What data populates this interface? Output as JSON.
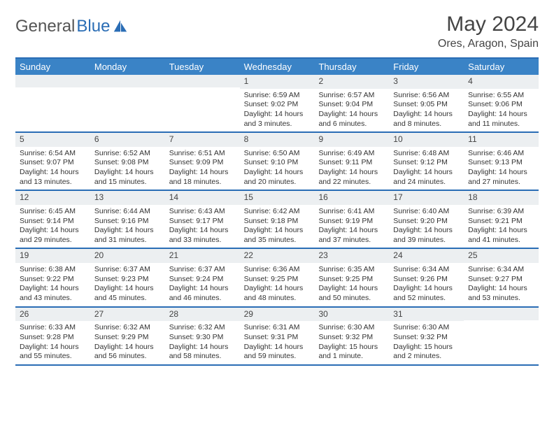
{
  "brand": {
    "part1": "General",
    "part2": "Blue"
  },
  "title": "May 2024",
  "location": "Ores, Aragon, Spain",
  "day_headers": [
    "Sunday",
    "Monday",
    "Tuesday",
    "Wednesday",
    "Thursday",
    "Friday",
    "Saturday"
  ],
  "colors": {
    "header_bg": "#3a83c6",
    "header_text": "#ffffff",
    "accent_border": "#2a6db5",
    "daynum_bg": "#eceff1",
    "text": "#333333",
    "logo_blue": "#2a6db5",
    "logo_gray": "#555555"
  },
  "weeks": [
    [
      {
        "empty": true
      },
      {
        "empty": true
      },
      {
        "empty": true
      },
      {
        "num": "1",
        "sunrise": "Sunrise: 6:59 AM",
        "sunset": "Sunset: 9:02 PM",
        "daylight": "Daylight: 14 hours and 3 minutes."
      },
      {
        "num": "2",
        "sunrise": "Sunrise: 6:57 AM",
        "sunset": "Sunset: 9:04 PM",
        "daylight": "Daylight: 14 hours and 6 minutes."
      },
      {
        "num": "3",
        "sunrise": "Sunrise: 6:56 AM",
        "sunset": "Sunset: 9:05 PM",
        "daylight": "Daylight: 14 hours and 8 minutes."
      },
      {
        "num": "4",
        "sunrise": "Sunrise: 6:55 AM",
        "sunset": "Sunset: 9:06 PM",
        "daylight": "Daylight: 14 hours and 11 minutes."
      }
    ],
    [
      {
        "num": "5",
        "sunrise": "Sunrise: 6:54 AM",
        "sunset": "Sunset: 9:07 PM",
        "daylight": "Daylight: 14 hours and 13 minutes."
      },
      {
        "num": "6",
        "sunrise": "Sunrise: 6:52 AM",
        "sunset": "Sunset: 9:08 PM",
        "daylight": "Daylight: 14 hours and 15 minutes."
      },
      {
        "num": "7",
        "sunrise": "Sunrise: 6:51 AM",
        "sunset": "Sunset: 9:09 PM",
        "daylight": "Daylight: 14 hours and 18 minutes."
      },
      {
        "num": "8",
        "sunrise": "Sunrise: 6:50 AM",
        "sunset": "Sunset: 9:10 PM",
        "daylight": "Daylight: 14 hours and 20 minutes."
      },
      {
        "num": "9",
        "sunrise": "Sunrise: 6:49 AM",
        "sunset": "Sunset: 9:11 PM",
        "daylight": "Daylight: 14 hours and 22 minutes."
      },
      {
        "num": "10",
        "sunrise": "Sunrise: 6:48 AM",
        "sunset": "Sunset: 9:12 PM",
        "daylight": "Daylight: 14 hours and 24 minutes."
      },
      {
        "num": "11",
        "sunrise": "Sunrise: 6:46 AM",
        "sunset": "Sunset: 9:13 PM",
        "daylight": "Daylight: 14 hours and 27 minutes."
      }
    ],
    [
      {
        "num": "12",
        "sunrise": "Sunrise: 6:45 AM",
        "sunset": "Sunset: 9:14 PM",
        "daylight": "Daylight: 14 hours and 29 minutes."
      },
      {
        "num": "13",
        "sunrise": "Sunrise: 6:44 AM",
        "sunset": "Sunset: 9:16 PM",
        "daylight": "Daylight: 14 hours and 31 minutes."
      },
      {
        "num": "14",
        "sunrise": "Sunrise: 6:43 AM",
        "sunset": "Sunset: 9:17 PM",
        "daylight": "Daylight: 14 hours and 33 minutes."
      },
      {
        "num": "15",
        "sunrise": "Sunrise: 6:42 AM",
        "sunset": "Sunset: 9:18 PM",
        "daylight": "Daylight: 14 hours and 35 minutes."
      },
      {
        "num": "16",
        "sunrise": "Sunrise: 6:41 AM",
        "sunset": "Sunset: 9:19 PM",
        "daylight": "Daylight: 14 hours and 37 minutes."
      },
      {
        "num": "17",
        "sunrise": "Sunrise: 6:40 AM",
        "sunset": "Sunset: 9:20 PM",
        "daylight": "Daylight: 14 hours and 39 minutes."
      },
      {
        "num": "18",
        "sunrise": "Sunrise: 6:39 AM",
        "sunset": "Sunset: 9:21 PM",
        "daylight": "Daylight: 14 hours and 41 minutes."
      }
    ],
    [
      {
        "num": "19",
        "sunrise": "Sunrise: 6:38 AM",
        "sunset": "Sunset: 9:22 PM",
        "daylight": "Daylight: 14 hours and 43 minutes."
      },
      {
        "num": "20",
        "sunrise": "Sunrise: 6:37 AM",
        "sunset": "Sunset: 9:23 PM",
        "daylight": "Daylight: 14 hours and 45 minutes."
      },
      {
        "num": "21",
        "sunrise": "Sunrise: 6:37 AM",
        "sunset": "Sunset: 9:24 PM",
        "daylight": "Daylight: 14 hours and 46 minutes."
      },
      {
        "num": "22",
        "sunrise": "Sunrise: 6:36 AM",
        "sunset": "Sunset: 9:25 PM",
        "daylight": "Daylight: 14 hours and 48 minutes."
      },
      {
        "num": "23",
        "sunrise": "Sunrise: 6:35 AM",
        "sunset": "Sunset: 9:25 PM",
        "daylight": "Daylight: 14 hours and 50 minutes."
      },
      {
        "num": "24",
        "sunrise": "Sunrise: 6:34 AM",
        "sunset": "Sunset: 9:26 PM",
        "daylight": "Daylight: 14 hours and 52 minutes."
      },
      {
        "num": "25",
        "sunrise": "Sunrise: 6:34 AM",
        "sunset": "Sunset: 9:27 PM",
        "daylight": "Daylight: 14 hours and 53 minutes."
      }
    ],
    [
      {
        "num": "26",
        "sunrise": "Sunrise: 6:33 AM",
        "sunset": "Sunset: 9:28 PM",
        "daylight": "Daylight: 14 hours and 55 minutes."
      },
      {
        "num": "27",
        "sunrise": "Sunrise: 6:32 AM",
        "sunset": "Sunset: 9:29 PM",
        "daylight": "Daylight: 14 hours and 56 minutes."
      },
      {
        "num": "28",
        "sunrise": "Sunrise: 6:32 AM",
        "sunset": "Sunset: 9:30 PM",
        "daylight": "Daylight: 14 hours and 58 minutes."
      },
      {
        "num": "29",
        "sunrise": "Sunrise: 6:31 AM",
        "sunset": "Sunset: 9:31 PM",
        "daylight": "Daylight: 14 hours and 59 minutes."
      },
      {
        "num": "30",
        "sunrise": "Sunrise: 6:30 AM",
        "sunset": "Sunset: 9:32 PM",
        "daylight": "Daylight: 15 hours and 1 minute."
      },
      {
        "num": "31",
        "sunrise": "Sunrise: 6:30 AM",
        "sunset": "Sunset: 9:32 PM",
        "daylight": "Daylight: 15 hours and 2 minutes."
      },
      {
        "empty": true
      }
    ]
  ]
}
